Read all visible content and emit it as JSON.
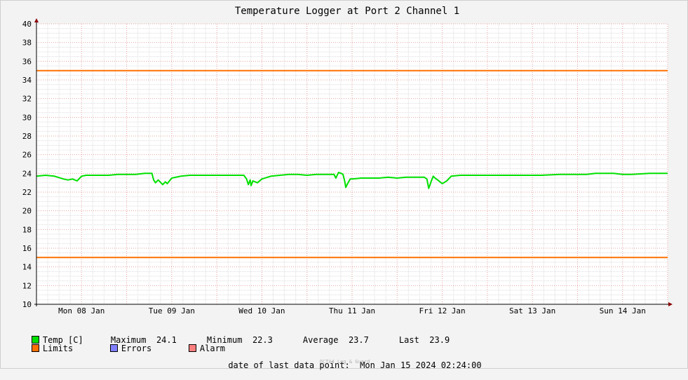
{
  "chart_data": {
    "type": "line",
    "title": "Temperature Logger at Port 2 Channel 1",
    "xlabel": "",
    "ylabel": "",
    "ylim": [
      10,
      40
    ],
    "y_ticks": [
      10,
      12,
      14,
      16,
      18,
      20,
      22,
      24,
      26,
      28,
      30,
      32,
      34,
      36,
      38,
      40
    ],
    "x_days": [
      "Mon 08 Jan",
      "Tue 09 Jan",
      "Wed 10 Jan",
      "Thu 11 Jan",
      "Fri 12 Jan",
      "Sat 13 Jan",
      "Sun 14 Jan"
    ],
    "x_range_days": [
      0,
      7
    ],
    "grid": true,
    "series": [
      {
        "name": "Temp [C]",
        "color": "#00e000",
        "x": [
          0,
          0.1,
          0.2,
          0.3,
          0.35,
          0.4,
          0.45,
          0.5,
          0.55,
          0.6,
          0.7,
          0.8,
          0.9,
          1.0,
          1.1,
          1.2,
          1.28,
          1.3,
          1.32,
          1.35,
          1.4,
          1.43,
          1.45,
          1.5,
          1.6,
          1.7,
          1.8,
          1.9,
          2.0,
          2.2,
          2.3,
          2.33,
          2.35,
          2.37,
          2.38,
          2.4,
          2.45,
          2.5,
          2.6,
          2.7,
          2.8,
          2.9,
          3.0,
          3.1,
          3.2,
          3.3,
          3.32,
          3.35,
          3.38,
          3.4,
          3.42,
          3.43,
          3.45,
          3.48,
          3.5,
          3.6,
          3.7,
          3.8,
          3.9,
          4.0,
          4.1,
          4.2,
          4.3,
          4.33,
          4.35,
          4.38,
          4.4,
          4.42,
          4.45,
          4.5,
          4.55,
          4.6,
          4.7,
          4.8,
          5.0,
          5.2,
          5.4,
          5.6,
          5.8,
          6.0,
          6.1,
          6.2,
          6.3,
          6.4,
          6.5,
          6.6,
          6.8,
          7.0
        ],
        "values": [
          23.7,
          23.8,
          23.7,
          23.4,
          23.3,
          23.4,
          23.2,
          23.7,
          23.8,
          23.8,
          23.8,
          23.8,
          23.9,
          23.9,
          23.9,
          24.0,
          24.0,
          23.3,
          23.0,
          23.3,
          22.8,
          23.1,
          22.9,
          23.5,
          23.7,
          23.8,
          23.8,
          23.8,
          23.8,
          23.8,
          23.8,
          23.4,
          22.8,
          23.3,
          22.7,
          23.2,
          23.0,
          23.4,
          23.7,
          23.8,
          23.9,
          23.9,
          23.8,
          23.9,
          23.9,
          23.9,
          23.5,
          24.1,
          24.0,
          23.9,
          23.1,
          22.5,
          22.9,
          23.4,
          23.4,
          23.5,
          23.5,
          23.5,
          23.6,
          23.5,
          23.6,
          23.6,
          23.6,
          23.4,
          22.4,
          23.2,
          23.7,
          23.5,
          23.3,
          22.9,
          23.2,
          23.7,
          23.8,
          23.8,
          23.8,
          23.8,
          23.8,
          23.8,
          23.9,
          23.9,
          23.9,
          24.0,
          24.0,
          24.0,
          23.9,
          23.9,
          24.0,
          24.0
        ]
      },
      {
        "name": "Limits",
        "color": "#ff7000",
        "x": [
          0,
          7
        ],
        "values": [
          35,
          35
        ]
      },
      {
        "name": "Limits",
        "color": "#ff7000",
        "x": [
          0,
          7
        ],
        "values": [
          15,
          15
        ]
      }
    ]
  },
  "legend": {
    "temp": {
      "label": "Temp [C]",
      "color": "#00e000"
    },
    "maximum": {
      "label": "Maximum",
      "value": "24.1"
    },
    "minimum": {
      "label": "Minimum",
      "value": "22.3"
    },
    "average": {
      "label": "Average",
      "value": "23.7"
    },
    "last": {
      "label": "Last",
      "value": "23.9"
    },
    "limits": {
      "label": "Limits",
      "color": "#ff7000"
    },
    "errors": {
      "label": "Errors",
      "color": "#7f7fff"
    },
    "alarm": {
      "label": "Alarm",
      "color": "#ff7f7f"
    }
  },
  "footer": {
    "date_label": "date of last data point:",
    "date_value": "Mon Jan 15 2024 02:24:00",
    "watermark": "OCTA4 Log & Guard"
  }
}
